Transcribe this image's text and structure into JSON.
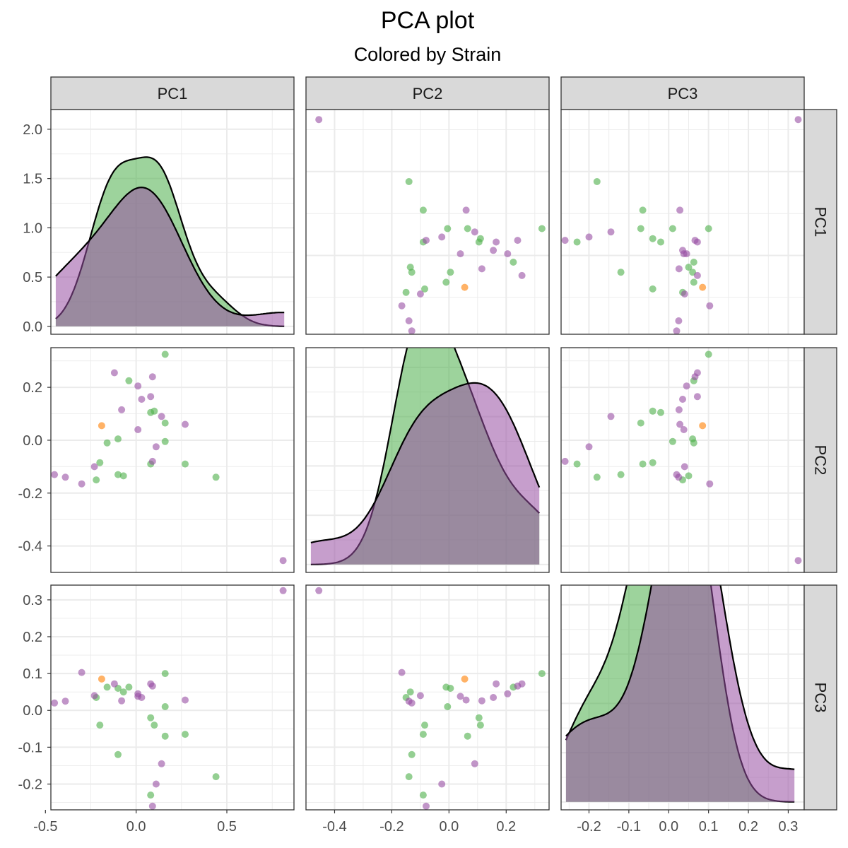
{
  "title": "PCA plot",
  "subtitle": "Colored by Strain",
  "colors": {
    "green": "#4daf4a",
    "purple": "#984ea3",
    "orange": "#ff7f00",
    "panel_border": "#333333",
    "grid_major": "#ebebeb",
    "strip_fill": "#d9d9d9"
  },
  "chart_data": {
    "type": "scatter",
    "layout": "scatterplot-matrix",
    "variables": [
      "PC1",
      "PC2",
      "PC3"
    ],
    "axes": {
      "PC1": {
        "range": [
          -0.47,
          0.87
        ],
        "ticks": [
          -0.5,
          0.0,
          0.5
        ],
        "tick_labels": [
          "-0.5",
          "0.0",
          "0.5"
        ]
      },
      "PC2": {
        "range": [
          -0.5,
          0.35
        ],
        "ticks": [
          -0.4,
          -0.2,
          0.0,
          0.2
        ],
        "tick_labels": [
          "-0.4",
          "-0.2",
          "0.0",
          "0.2"
        ]
      },
      "PC3": {
        "range": [
          -0.27,
          0.34
        ],
        "ticks": [
          -0.2,
          -0.1,
          0.0,
          0.1,
          0.2,
          0.3
        ],
        "tick_labels": [
          "-0.2",
          "-0.1",
          "0.0",
          "0.1",
          "0.2",
          "0.3"
        ]
      }
    },
    "density_axis": {
      "range": [
        -0.08,
        2.2
      ],
      "ticks": [
        0.0,
        0.5,
        1.0,
        1.5,
        2.0
      ],
      "tick_labels": [
        "0.0",
        "0.5",
        "1.0",
        "1.5",
        "2.0"
      ]
    },
    "series": [
      {
        "color": "#4daf4a",
        "points": [
          {
            "PC1": 0.16,
            "PC2": 0.325,
            "PC3": 0.1
          },
          {
            "PC1": 0.44,
            "PC2": -0.14,
            "PC3": -0.18
          },
          {
            "PC1": 0.27,
            "PC2": -0.09,
            "PC3": -0.065
          },
          {
            "PC1": 0.16,
            "PC2": 0.065,
            "PC3": -0.07
          },
          {
            "PC1": 0.16,
            "PC2": -0.005,
            "PC3": 0.01
          },
          {
            "PC1": 0.1,
            "PC2": 0.11,
            "PC3": -0.04
          },
          {
            "PC1": 0.08,
            "PC2": 0.105,
            "PC3": -0.02
          },
          {
            "PC1": 0.08,
            "PC2": -0.09,
            "PC3": -0.23
          },
          {
            "PC1": -0.04,
            "PC2": 0.225,
            "PC3": 0.063
          },
          {
            "PC1": -0.07,
            "PC2": -0.135,
            "PC3": 0.05
          },
          {
            "PC1": -0.1,
            "PC2": -0.13,
            "PC3": -0.12
          },
          {
            "PC1": -0.1,
            "PC2": 0.005,
            "PC3": 0.06
          },
          {
            "PC1": -0.16,
            "PC2": -0.01,
            "PC3": 0.063
          },
          {
            "PC1": -0.2,
            "PC2": -0.085,
            "PC3": -0.04
          },
          {
            "PC1": -0.22,
            "PC2": -0.15,
            "PC3": 0.035
          }
        ]
      },
      {
        "color": "#984ea3",
        "points": [
          {
            "PC1": 0.81,
            "PC2": -0.455,
            "PC3": 0.325
          },
          {
            "PC1": 0.27,
            "PC2": 0.06,
            "PC3": 0.028
          },
          {
            "PC1": 0.14,
            "PC2": 0.09,
            "PC3": -0.145
          },
          {
            "PC1": 0.11,
            "PC2": -0.025,
            "PC3": -0.2
          },
          {
            "PC1": 0.09,
            "PC2": 0.24,
            "PC3": 0.066
          },
          {
            "PC1": 0.08,
            "PC2": 0.165,
            "PC3": 0.072
          },
          {
            "PC1": 0.09,
            "PC2": -0.08,
            "PC3": -0.26
          },
          {
            "PC1": 0.03,
            "PC2": 0.155,
            "PC3": 0.035
          },
          {
            "PC1": 0.01,
            "PC2": 0.205,
            "PC3": 0.045
          },
          {
            "PC1": 0.01,
            "PC2": 0.04,
            "PC3": 0.038
          },
          {
            "PC1": -0.08,
            "PC2": 0.115,
            "PC3": 0.026
          },
          {
            "PC1": -0.12,
            "PC2": 0.255,
            "PC3": 0.072
          },
          {
            "PC1": -0.23,
            "PC2": -0.1,
            "PC3": 0.04
          },
          {
            "PC1": -0.3,
            "PC2": -0.165,
            "PC3": 0.103
          },
          {
            "PC1": -0.39,
            "PC2": -0.14,
            "PC3": 0.025
          },
          {
            "PC1": -0.45,
            "PC2": -0.13,
            "PC3": 0.02
          }
        ]
      },
      {
        "color": "#ff7f00",
        "points": [
          {
            "PC1": -0.19,
            "PC2": 0.055,
            "PC3": 0.085
          }
        ]
      }
    ],
    "density_fill_opacity": 0.55,
    "point_opacity": 0.6,
    "grid": true,
    "legend": "none"
  }
}
